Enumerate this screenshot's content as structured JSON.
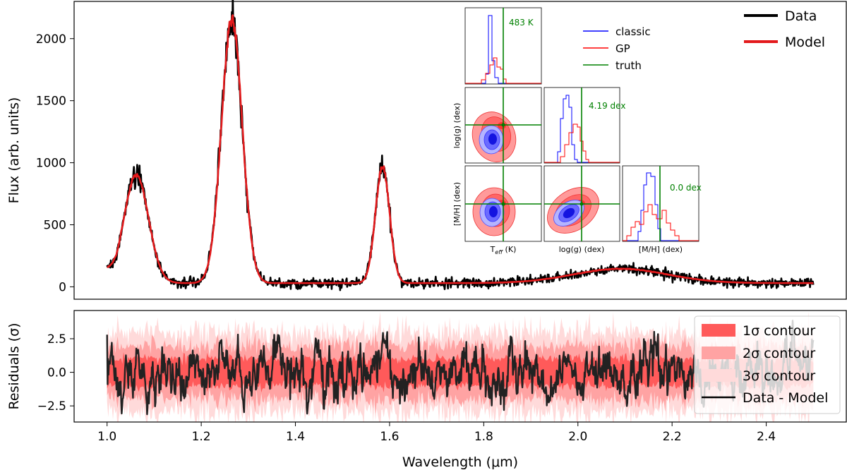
{
  "chart_data": [
    {
      "type": "line",
      "xlabel": "",
      "ylabel": "Flux (arb. units)",
      "xlim": [
        0.93,
        2.57
      ],
      "ylim": [
        -100,
        2300
      ],
      "yticks": [
        0,
        500,
        1000,
        1500,
        2000
      ],
      "legend": {
        "placement": "top-right",
        "entries": [
          "Data",
          "Model"
        ]
      },
      "colors": {
        "data": "#000000",
        "model": "#e31a1c"
      },
      "peaks": [
        {
          "x": 1.062,
          "y": 920
        },
        {
          "x": 1.265,
          "y": 2200
        },
        {
          "x": 1.585,
          "y": 980
        },
        {
          "x": 2.09,
          "y": 130
        }
      ],
      "series": [
        {
          "name": "Data",
          "x": [
            1.0,
            1.06,
            1.12,
            1.2,
            1.265,
            1.36,
            1.5,
            1.585,
            1.66,
            1.8,
            2.0,
            2.1,
            2.3,
            2.5
          ],
          "values": [
            250,
            920,
            30,
            40,
            2200,
            20,
            10,
            980,
            20,
            10,
            60,
            130,
            20,
            60
          ]
        },
        {
          "name": "Model",
          "x": [
            1.0,
            1.06,
            1.12,
            1.2,
            1.265,
            1.36,
            1.5,
            1.585,
            1.66,
            1.8,
            2.0,
            2.1,
            2.3,
            2.5
          ],
          "values": [
            200,
            880,
            25,
            35,
            2150,
            15,
            10,
            960,
            15,
            10,
            55,
            120,
            20,
            50
          ]
        }
      ]
    },
    {
      "type": "line",
      "xlabel": "Wavelength (μm)",
      "ylabel": "Residuals (σ)",
      "xlim": [
        0.93,
        2.57
      ],
      "ylim": [
        -3.7,
        4.6
      ],
      "xticks": [
        "1.0",
        "1.2",
        "1.4",
        "1.6",
        "1.8",
        "2.0",
        "2.2",
        "2.4"
      ],
      "xtick_values": [
        1.0,
        1.2,
        1.4,
        1.6,
        1.8,
        2.0,
        2.2,
        2.4
      ],
      "yticks": [
        "−2.5",
        "0.0",
        "2.5"
      ],
      "ytick_values": [
        -2.5,
        0.0,
        2.5
      ],
      "legend": {
        "placement": "top-right",
        "entries": [
          "1σ contour",
          "2σ contour",
          "3σ contour",
          "Data - Model"
        ]
      },
      "bands": {
        "1σ": 1.0,
        "2σ": 2.0,
        "3σ": 3.0
      },
      "colors": {
        "band1": "#ff5a5a",
        "band2": "#ffa3a3",
        "band3": "#ffdada",
        "line": "#222222"
      }
    },
    {
      "type": "corner",
      "params": [
        "T_eff (K)",
        "log(g) (dex)",
        "[M/H] (dex)"
      ],
      "xlabels": {
        "teff_main": "T",
        "teff_sub": "eff",
        "teff_unit": " (K)",
        "logg": "log(g) (dex)",
        "mh": "[M/H] (dex)"
      },
      "ylabels": {
        "logg": "log(g) (dex)",
        "mh": "[M/H] (dex)"
      },
      "truth_labels": {
        "teff": "483 K",
        "logg": "4.19 dex",
        "mh": "0.0 dex"
      },
      "legend": {
        "placement": "top",
        "entries": [
          "classic",
          "GP",
          "truth"
        ]
      },
      "colors": {
        "classic": "#0000ff",
        "gp": "#ff0000",
        "truth": "#008000"
      }
    }
  ]
}
